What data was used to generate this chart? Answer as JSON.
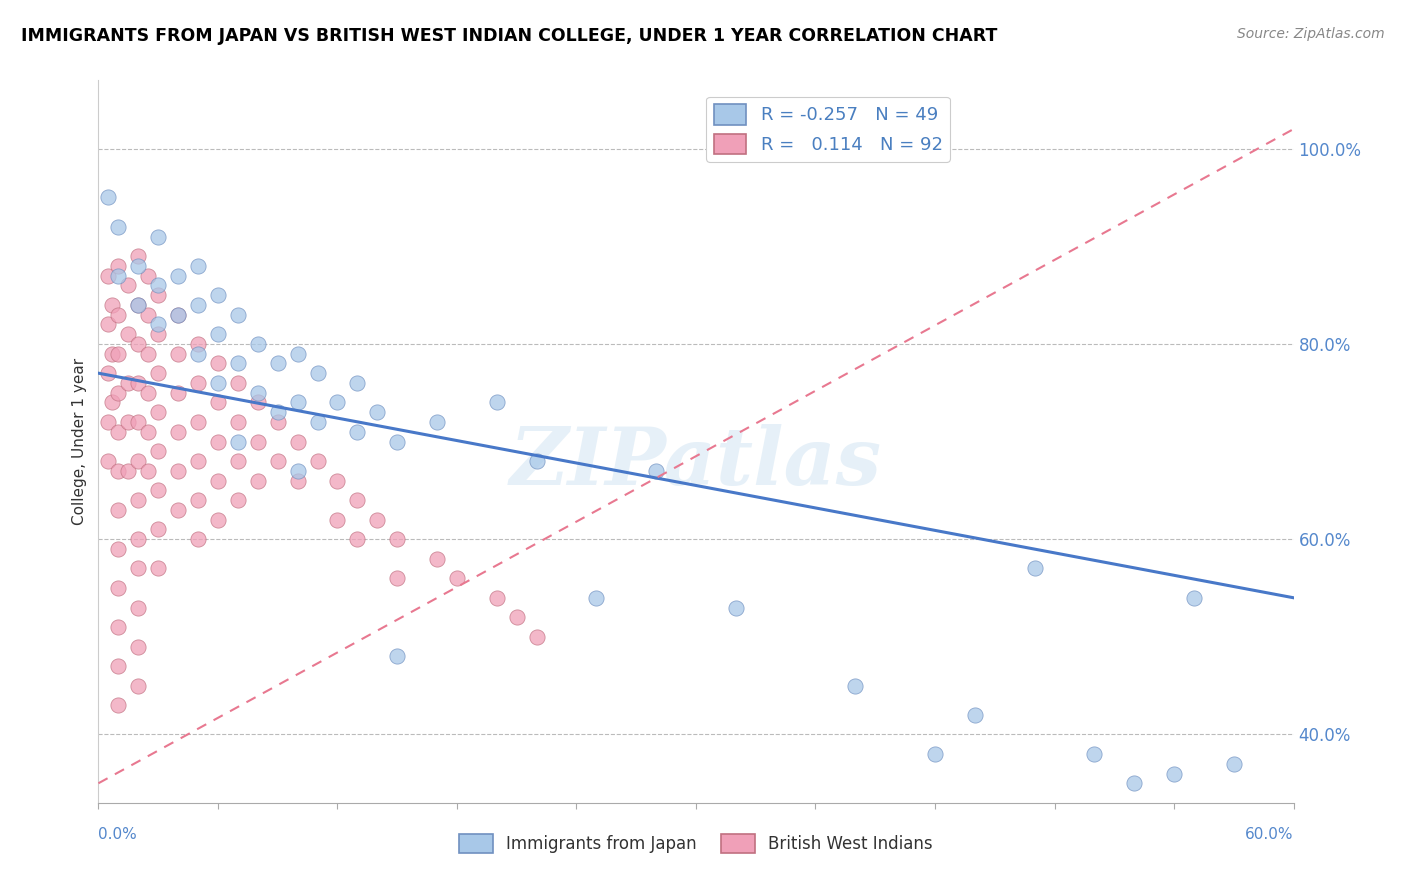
{
  "title": "IMMIGRANTS FROM JAPAN VS BRITISH WEST INDIAN COLLEGE, UNDER 1 YEAR CORRELATION CHART",
  "source_text": "Source: ZipAtlas.com",
  "ylabel": "College, Under 1 year",
  "xlim": [
    0.0,
    0.6
  ],
  "ylim": [
    0.33,
    1.07
  ],
  "yticks": [
    0.4,
    0.6,
    0.8,
    1.0
  ],
  "ytick_labels": [
    "40.0%",
    "60.0%",
    "80.0%",
    "100.0%"
  ],
  "legend_blue_r": "R = -0.257",
  "legend_blue_n": "N = 49",
  "legend_pink_r": "R =   0.114",
  "legend_pink_n": "N = 92",
  "blue_color": "#a8c8e8",
  "pink_color": "#f0a0b8",
  "blue_edge_color": "#7090c0",
  "pink_edge_color": "#c07080",
  "blue_line_color": "#4878c8",
  "pink_line_color": "#e87890",
  "watermark": "ZIPatlas",
  "blue_line_x0": 0.0,
  "blue_line_y0": 0.77,
  "blue_line_x1": 0.6,
  "blue_line_y1": 0.54,
  "pink_line_x0": 0.0,
  "pink_line_y0": 0.35,
  "pink_line_x1": 0.6,
  "pink_line_y1": 1.02,
  "blue_points_x": [
    0.005,
    0.01,
    0.01,
    0.02,
    0.02,
    0.03,
    0.03,
    0.03,
    0.04,
    0.04,
    0.05,
    0.05,
    0.05,
    0.06,
    0.06,
    0.06,
    0.07,
    0.07,
    0.08,
    0.08,
    0.09,
    0.09,
    0.1,
    0.1,
    0.11,
    0.11,
    0.12,
    0.13,
    0.13,
    0.14,
    0.15,
    0.17,
    0.2,
    0.22,
    0.25,
    0.28,
    0.32,
    0.38,
    0.42,
    0.44,
    0.47,
    0.5,
    0.52,
    0.54,
    0.55,
    0.57,
    0.07,
    0.1,
    0.15
  ],
  "blue_points_y": [
    0.95,
    0.87,
    0.92,
    0.88,
    0.84,
    0.91,
    0.86,
    0.82,
    0.87,
    0.83,
    0.88,
    0.84,
    0.79,
    0.85,
    0.81,
    0.76,
    0.83,
    0.78,
    0.8,
    0.75,
    0.78,
    0.73,
    0.79,
    0.74,
    0.77,
    0.72,
    0.74,
    0.71,
    0.76,
    0.73,
    0.7,
    0.72,
    0.74,
    0.68,
    0.54,
    0.67,
    0.53,
    0.45,
    0.38,
    0.42,
    0.57,
    0.38,
    0.35,
    0.36,
    0.54,
    0.37,
    0.7,
    0.67,
    0.48
  ],
  "pink_points_x": [
    0.005,
    0.005,
    0.005,
    0.005,
    0.005,
    0.007,
    0.007,
    0.007,
    0.01,
    0.01,
    0.01,
    0.01,
    0.01,
    0.01,
    0.01,
    0.01,
    0.01,
    0.01,
    0.01,
    0.01,
    0.015,
    0.015,
    0.015,
    0.015,
    0.015,
    0.02,
    0.02,
    0.02,
    0.02,
    0.02,
    0.02,
    0.02,
    0.02,
    0.02,
    0.02,
    0.02,
    0.02,
    0.025,
    0.025,
    0.025,
    0.025,
    0.025,
    0.025,
    0.03,
    0.03,
    0.03,
    0.03,
    0.03,
    0.03,
    0.03,
    0.03,
    0.04,
    0.04,
    0.04,
    0.04,
    0.04,
    0.04,
    0.05,
    0.05,
    0.05,
    0.05,
    0.05,
    0.05,
    0.06,
    0.06,
    0.06,
    0.06,
    0.06,
    0.07,
    0.07,
    0.07,
    0.07,
    0.08,
    0.08,
    0.08,
    0.09,
    0.09,
    0.1,
    0.1,
    0.11,
    0.12,
    0.12,
    0.13,
    0.13,
    0.14,
    0.15,
    0.15,
    0.17,
    0.18,
    0.2,
    0.21,
    0.22
  ],
  "pink_points_y": [
    0.87,
    0.82,
    0.77,
    0.72,
    0.68,
    0.84,
    0.79,
    0.74,
    0.88,
    0.83,
    0.79,
    0.75,
    0.71,
    0.67,
    0.63,
    0.59,
    0.55,
    0.51,
    0.47,
    0.43,
    0.86,
    0.81,
    0.76,
    0.72,
    0.67,
    0.89,
    0.84,
    0.8,
    0.76,
    0.72,
    0.68,
    0.64,
    0.6,
    0.57,
    0.53,
    0.49,
    0.45,
    0.87,
    0.83,
    0.79,
    0.75,
    0.71,
    0.67,
    0.85,
    0.81,
    0.77,
    0.73,
    0.69,
    0.65,
    0.61,
    0.57,
    0.83,
    0.79,
    0.75,
    0.71,
    0.67,
    0.63,
    0.8,
    0.76,
    0.72,
    0.68,
    0.64,
    0.6,
    0.78,
    0.74,
    0.7,
    0.66,
    0.62,
    0.76,
    0.72,
    0.68,
    0.64,
    0.74,
    0.7,
    0.66,
    0.72,
    0.68,
    0.7,
    0.66,
    0.68,
    0.66,
    0.62,
    0.64,
    0.6,
    0.62,
    0.6,
    0.56,
    0.58,
    0.56,
    0.54,
    0.52,
    0.5
  ]
}
